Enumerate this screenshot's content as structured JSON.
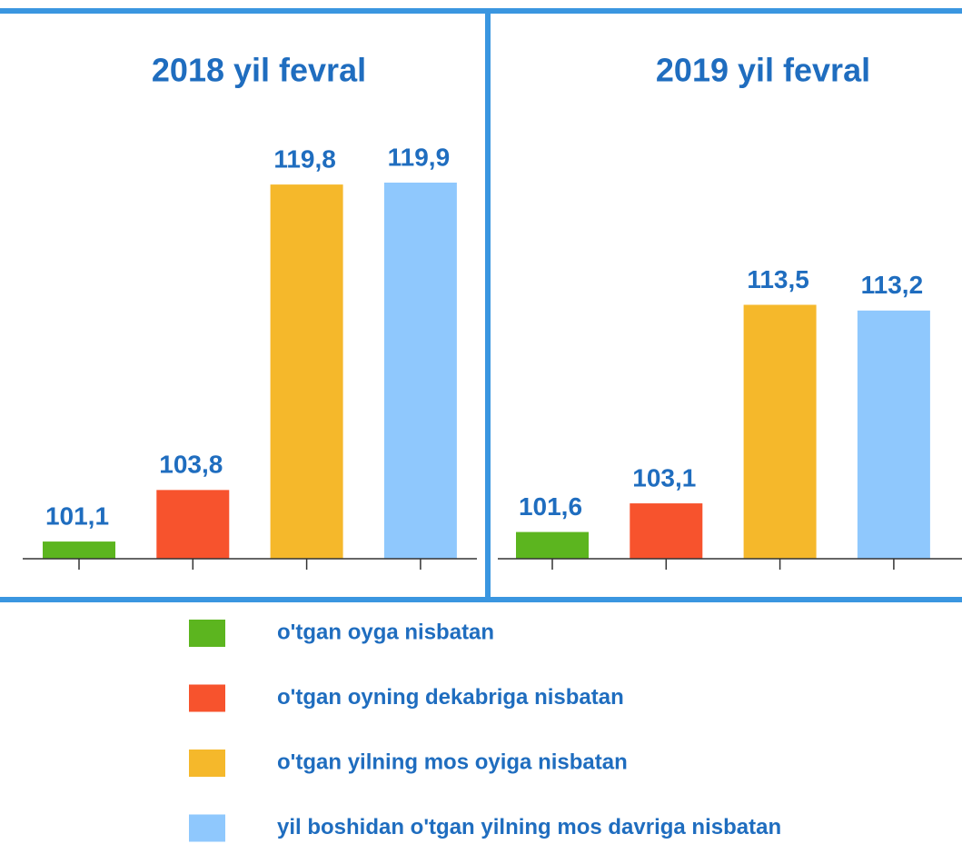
{
  "chart_data": [
    {
      "type": "bar",
      "title": "2018 yil fevral",
      "values": [
        101.1,
        103.8,
        119.8,
        119.9
      ],
      "value_labels": [
        "101,1",
        "103,8",
        "119,8",
        "119,9"
      ],
      "ylim": [
        100.2,
        120.9
      ]
    },
    {
      "type": "bar",
      "title": "2019 yil fevral",
      "values": [
        101.6,
        103.1,
        113.5,
        113.2
      ],
      "value_labels": [
        "101,6",
        "103,1",
        "113,5",
        "113,2"
      ],
      "ylim": [
        100.2,
        120.9
      ]
    }
  ],
  "legend": [
    {
      "name": "o'tgan oyga nisbatan",
      "color": "#5cb51f"
    },
    {
      "name": "o'tgan oyning dekabriga nisbatan",
      "color": "#f7532d"
    },
    {
      "name": "o'tgan yilning mos oyiga nisbatan",
      "color": "#f5b82b"
    },
    {
      "name": "yil boshidan o'tgan yilning mos davriga nisbatan",
      "color": "#8fc8fd"
    }
  ]
}
